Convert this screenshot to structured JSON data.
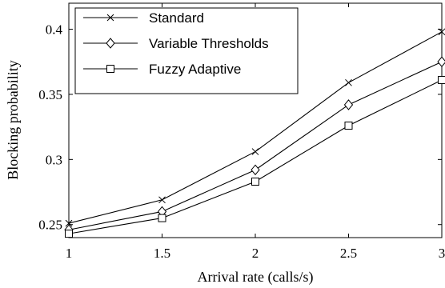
{
  "chart_data": {
    "type": "line",
    "title": "",
    "xlabel": "Arrival rate (calls/s)",
    "ylabel": "Blocking probability",
    "x": [
      1,
      1.5,
      2,
      2.5,
      3
    ],
    "xlim": [
      1,
      3
    ],
    "ylim": [
      0.24,
      0.42
    ],
    "xticks": [
      1,
      1.5,
      2,
      2.5,
      3
    ],
    "xtick_labels": [
      "1",
      "1.5",
      "2",
      "2.5",
      "3"
    ],
    "yticks": [
      0.25,
      0.3,
      0.35,
      0.4
    ],
    "ytick_labels": [
      "0.25",
      "0.3",
      "0.35",
      "0.4"
    ],
    "grid": false,
    "legend_position": "top-left",
    "series": [
      {
        "name": "Standard",
        "marker": "x",
        "color": "#000000",
        "values": [
          0.251,
          0.269,
          0.306,
          0.359,
          0.398
        ]
      },
      {
        "name": "Variable Thresholds",
        "marker": "diamond",
        "color": "#000000",
        "values": [
          0.246,
          0.26,
          0.292,
          0.342,
          0.375
        ]
      },
      {
        "name": "Fuzzy Adaptive",
        "marker": "square",
        "color": "#000000",
        "values": [
          0.243,
          0.255,
          0.283,
          0.326,
          0.361
        ]
      }
    ]
  }
}
